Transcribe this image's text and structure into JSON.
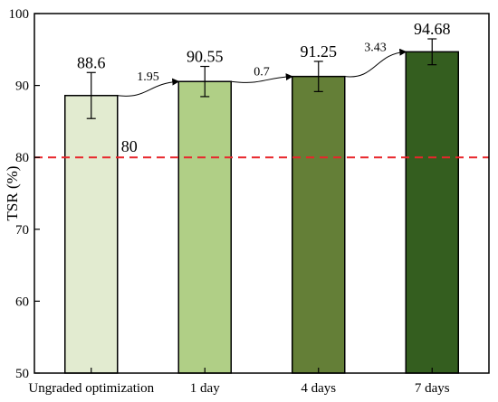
{
  "chart_data": {
    "type": "bar",
    "title": "",
    "xlabel": "",
    "ylabel": "TSR (%)",
    "ylim": [
      50,
      100
    ],
    "yticks": [
      50,
      60,
      70,
      80,
      90,
      100
    ],
    "grid": false,
    "categories": [
      "Ungraded optimization",
      "1 day",
      "4 days",
      "7 days"
    ],
    "values": [
      88.6,
      90.55,
      91.25,
      94.68
    ],
    "value_labels": [
      "88.6",
      "90.55",
      "91.25",
      "94.68"
    ],
    "error": [
      3.2,
      2.1,
      2.1,
      1.8
    ],
    "bar_colors": [
      "#e2ebd0",
      "#b0cf86",
      "#647f37",
      "#345e1f"
    ],
    "increments": [
      {
        "from": 0,
        "to": 1,
        "label": "1.95"
      },
      {
        "from": 1,
        "to": 2,
        "label": "0.7"
      },
      {
        "from": 2,
        "to": 3,
        "label": "3.43"
      }
    ],
    "reference_line": {
      "value": 80,
      "label": "80",
      "color": "#e8262b",
      "style": "dashed"
    }
  }
}
